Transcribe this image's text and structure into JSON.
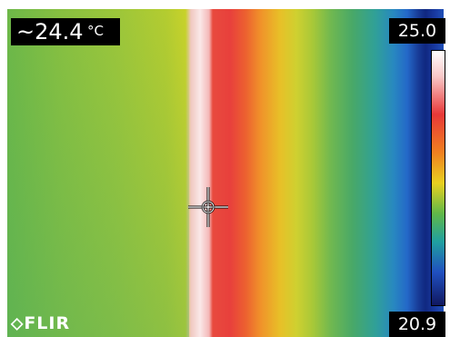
{
  "readout": {
    "value": "~24.4",
    "unit": "°C"
  },
  "scale": {
    "max": "25.0",
    "min": "20.9"
  },
  "logo": "FLIR"
}
